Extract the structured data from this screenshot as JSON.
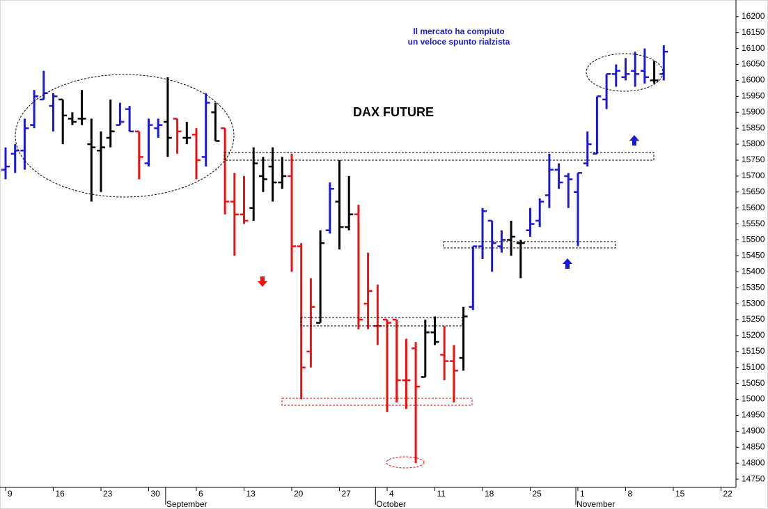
{
  "chart_data": {
    "type": "ohlc",
    "title": "DAX FUTURE",
    "annotation": [
      "Il mercato ha compiuto",
      "un veloce spunto rialzista"
    ],
    "categories": [
      "9",
      null,
      null,
      null,
      null,
      "16",
      null,
      null,
      null,
      null,
      "23",
      null,
      null,
      null,
      null,
      "30",
      null,
      null,
      null,
      null,
      "6",
      null,
      null,
      null,
      null,
      "13",
      null,
      null,
      null,
      null,
      "20",
      null,
      null,
      null,
      null,
      "27",
      null,
      null,
      null,
      null,
      "4",
      null,
      null,
      null,
      null,
      "11",
      null,
      null,
      null,
      null,
      "18",
      null,
      null,
      null,
      null,
      "25",
      null,
      null,
      null,
      null,
      "1",
      null,
      null,
      null,
      null,
      "8",
      null,
      null,
      null,
      null,
      "15",
      null,
      null,
      null,
      null,
      "22"
    ],
    "months": [
      {
        "label": "September",
        "index": 17
      },
      {
        "label": "October",
        "index": 39
      },
      {
        "label": "November",
        "index": 60
      }
    ],
    "open": [
      15720,
      15770,
      15780,
      15860,
      15940,
      15920,
      15940,
      15880,
      15880,
      15800,
      15780,
      15820,
      15860,
      15910,
      15840,
      15740,
      15850,
      15870,
      15880,
      15820,
      15830,
      15760,
      15900,
      15850,
      15620,
      15580,
      15600,
      15700,
      15730,
      15680,
      15700,
      15480,
      15150,
      15240,
      15530,
      15620,
      15540,
      15580,
      15300,
      15230,
      15250,
      15250,
      15060,
      15160,
      15070,
      15210,
      15140,
      15120,
      15130,
      15290,
      15480,
      15560,
      15480,
      15500,
      15490,
      15530,
      15560,
      15640,
      15720,
      15700,
      15650,
      15740,
      15770,
      15940,
      16020,
      16010,
      16030,
      16030,
      16000,
      16020,
      null,
      null,
      null,
      null,
      null,
      null
    ],
    "high": [
      15790,
      15800,
      15880,
      15970,
      16030,
      15960,
      15940,
      15900,
      15970,
      15880,
      15840,
      15940,
      15930,
      15920,
      15840,
      15880,
      15880,
      16010,
      15880,
      15870,
      15850,
      15960,
      15930,
      15850,
      15710,
      15700,
      15790,
      15760,
      15790,
      15760,
      15770,
      15490,
      15380,
      15530,
      15680,
      15750,
      15700,
      15610,
      15460,
      15360,
      15250,
      15250,
      15190,
      15180,
      15250,
      15260,
      15230,
      15170,
      15290,
      15480,
      15600,
      15560,
      15530,
      15560,
      15500,
      15600,
      15630,
      15770,
      15740,
      15710,
      15710,
      15840,
      15950,
      16020,
      16050,
      16070,
      16090,
      16100,
      16060,
      16110,
      null,
      null,
      null,
      null,
      null,
      null
    ],
    "low": [
      15690,
      15710,
      15720,
      15850,
      15940,
      15840,
      15800,
      15860,
      15860,
      15620,
      15650,
      15790,
      15860,
      15840,
      15690,
      15730,
      15820,
      15760,
      15770,
      15800,
      15690,
      15730,
      15810,
      15580,
      15450,
      15550,
      15560,
      15650,
      15620,
      15660,
      15400,
      15000,
      15100,
      15240,
      15520,
      15470,
      15530,
      15220,
      15220,
      15170,
      14960,
      14990,
      14970,
      14800,
      15070,
      15170,
      15060,
      14990,
      15090,
      15280,
      15440,
      15400,
      15460,
      15450,
      15380,
      15510,
      15540,
      15600,
      15660,
      15600,
      15480,
      15730,
      15770,
      15910,
      15980,
      16000,
      15980,
      15990,
      15990,
      16000,
      null,
      null,
      null,
      null,
      null,
      null
    ],
    "close": [
      15730,
      15780,
      15850,
      15950,
      15960,
      15950,
      15890,
      15870,
      15880,
      15790,
      15790,
      15840,
      15870,
      15840,
      15760,
      15860,
      15860,
      15820,
      15840,
      15820,
      15750,
      15930,
      15810,
      15620,
      15580,
      15560,
      15740,
      15690,
      15680,
      15700,
      15480,
      15100,
      15290,
      15490,
      15660,
      15540,
      15580,
      15250,
      15340,
      15230,
      15240,
      15060,
      15060,
      15040,
      15210,
      15180,
      15120,
      15090,
      15260,
      15480,
      15590,
      15490,
      15500,
      15510,
      15490,
      15550,
      15620,
      15720,
      15680,
      15690,
      15710,
      15800,
      15950,
      16020,
      16030,
      16020,
      16020,
      16010,
      16000,
      16090,
      null,
      null,
      null,
      null,
      null,
      null
    ],
    "bar_color": [
      "up",
      "up",
      "up",
      "up",
      "up",
      "up",
      "flat",
      "flat",
      "flat",
      "flat",
      "flat",
      "flat",
      "up",
      "up",
      "down",
      "up",
      "up",
      "flat",
      "down",
      "flat",
      "down",
      "up",
      "flat",
      "down",
      "down",
      "down",
      "flat",
      "flat",
      "flat",
      "flat",
      "down",
      "down",
      "down",
      "flat",
      "up",
      "flat",
      "flat",
      "down",
      "down",
      "down",
      "down",
      "down",
      "down",
      "down",
      "flat",
      "flat",
      "down",
      "down",
      "flat",
      "up",
      "up",
      "up",
      "up",
      "flat",
      "flat",
      "up",
      "up",
      "up",
      "up",
      "up",
      "up",
      "up",
      "up",
      "up",
      "up",
      "up",
      "up",
      "up",
      "flat",
      "up",
      null,
      null,
      null,
      null,
      null,
      null
    ],
    "colors": {
      "up": "#1a1ad6",
      "down": "#ee1111",
      "flat": "#000000"
    },
    "ylim": [
      14724,
      16252
    ],
    "yticks": [
      14750,
      14800,
      14850,
      14900,
      14950,
      15000,
      15050,
      15100,
      15150,
      15200,
      15250,
      15300,
      15350,
      15400,
      15450,
      15500,
      15550,
      15600,
      15650,
      15700,
      15750,
      15800,
      15850,
      15900,
      15950,
      16000,
      16050,
      16100,
      16150,
      16200
    ]
  }
}
